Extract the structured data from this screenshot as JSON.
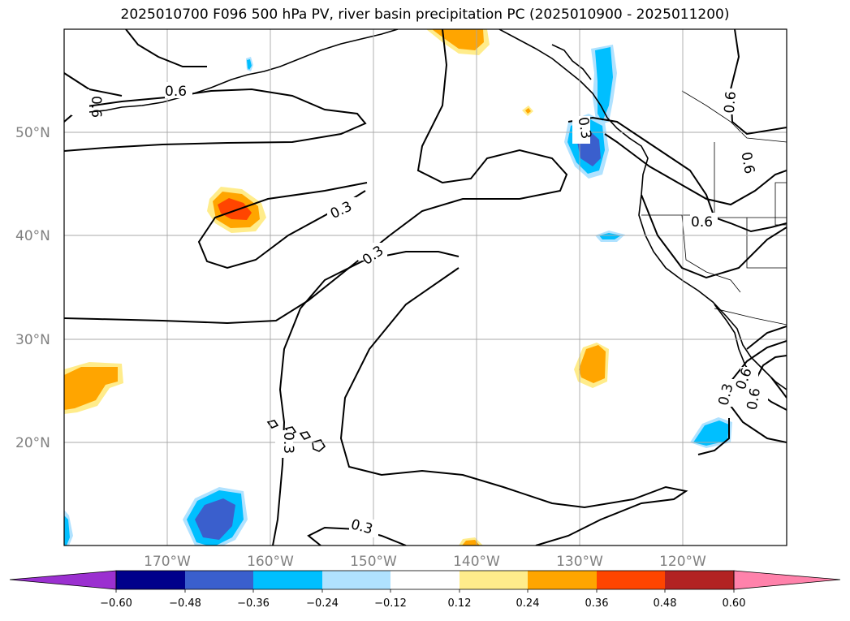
{
  "title": "2025010700 F096 500 hPa PV, river basin precipitation PC (2025010900 - 2025011200)",
  "latitude_labels": [
    "50°N",
    "40°N",
    "30°N",
    "20°N"
  ],
  "longitude_labels": [
    "170°W",
    "160°W",
    "150°W",
    "140°W",
    "130°W",
    "120°W"
  ],
  "pv_contour_labels": [
    "0.6",
    "0.6",
    "0.3",
    "0.3",
    "0.3",
    "0.3",
    "0.3",
    "0.6",
    "0.6",
    "0.6",
    "0.3",
    "0.6",
    "0.6"
  ],
  "colorbar": {
    "tick_labels": [
      "−0.60",
      "−0.48",
      "−0.36",
      "−0.24",
      "−0.12",
      "0.12",
      "0.24",
      "0.36",
      "0.48",
      "0.60"
    ],
    "colors": [
      "#9b30d0",
      "#00008b",
      "#3a5fcd",
      "#00bfff",
      "#b0e2ff",
      "#ffffff",
      "#ffec8b",
      "#ffa500",
      "#ff4500",
      "#b22222",
      "#ff82ab"
    ]
  },
  "colors": {
    "strong_negative": "#3a5fcd",
    "negative": "#00bfff",
    "weak_negative": "#b0e2ff",
    "weak_positive": "#ffec8b",
    "positive": "#ffa500",
    "strong_positive": "#ff4500",
    "grid": "#a9a9a9"
  }
}
